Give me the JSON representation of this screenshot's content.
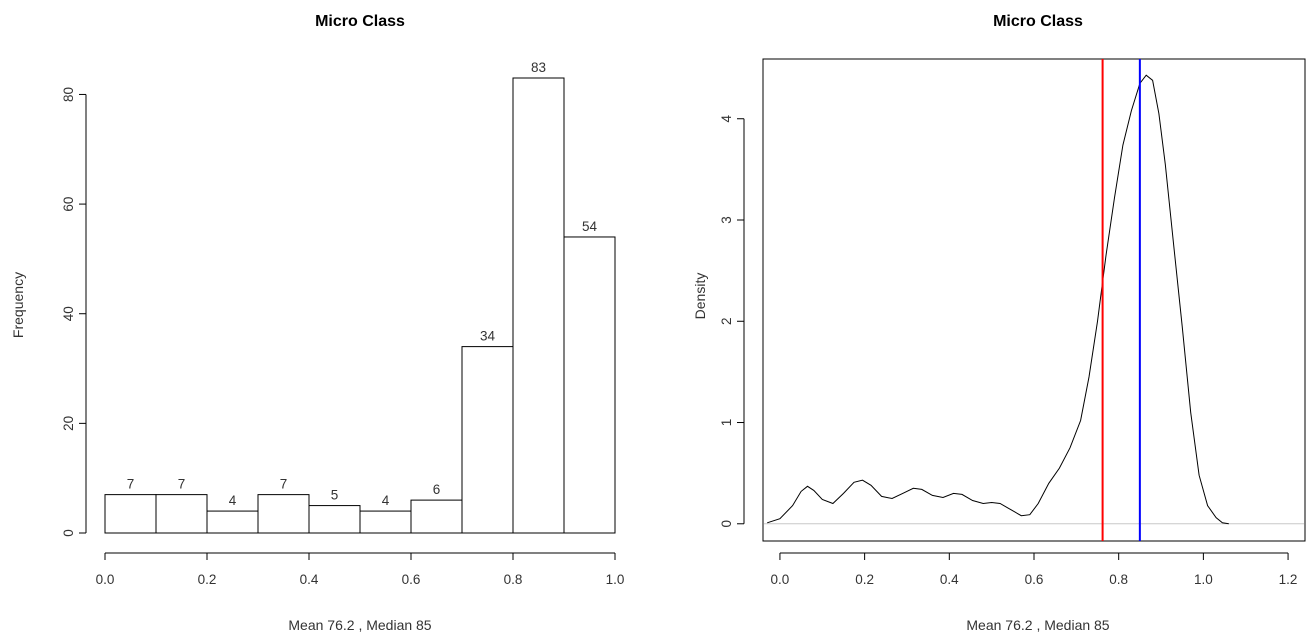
{
  "chart_data": [
    {
      "type": "bar",
      "title": "Micro Class",
      "xlabel": "Mean 76.2 , Median 85",
      "ylabel": "Frequency",
      "bin_edges": [
        0.0,
        0.1,
        0.2,
        0.3,
        0.4,
        0.5,
        0.6,
        0.7,
        0.8,
        0.9,
        1.0
      ],
      "values": [
        7,
        7,
        4,
        7,
        5,
        4,
        6,
        34,
        83,
        54
      ],
      "bar_labels": [
        "7",
        "7",
        "4",
        "7",
        "5",
        "4",
        "6",
        "34",
        "83",
        "54"
      ],
      "xlim": [
        0.0,
        1.0
      ],
      "ylim": [
        0,
        83
      ],
      "x_ticks": [
        0.0,
        0.2,
        0.4,
        0.6,
        0.8,
        1.0
      ],
      "x_tick_labels": [
        "0.0",
        "0.2",
        "0.4",
        "0.6",
        "0.8",
        "1.0"
      ],
      "y_ticks": [
        0,
        20,
        40,
        60,
        80
      ],
      "y_tick_labels": [
        "0",
        "20",
        "40",
        "60",
        "80"
      ],
      "grid": false
    },
    {
      "type": "line",
      "title": "Micro Class",
      "xlabel": "Mean 76.2 , Median 85",
      "ylabel": "Density",
      "xlim": [
        -0.04,
        1.24
      ],
      "ylim": [
        -0.17,
        4.59
      ],
      "x_ticks": [
        0.0,
        0.2,
        0.4,
        0.6,
        0.8,
        1.0,
        1.2
      ],
      "x_tick_labels": [
        "0.0",
        "0.2",
        "0.4",
        "0.6",
        "0.8",
        "1.0",
        "1.2"
      ],
      "y_ticks": [
        0,
        1,
        2,
        3,
        4
      ],
      "y_tick_labels": [
        "0",
        "1",
        "2",
        "3",
        "4"
      ],
      "x": [
        -0.03,
        0.0,
        0.03,
        0.05,
        0.065,
        0.08,
        0.1,
        0.125,
        0.15,
        0.175,
        0.195,
        0.215,
        0.24,
        0.265,
        0.29,
        0.315,
        0.335,
        0.36,
        0.385,
        0.41,
        0.43,
        0.455,
        0.48,
        0.5,
        0.52,
        0.545,
        0.57,
        0.59,
        0.61,
        0.635,
        0.66,
        0.685,
        0.71,
        0.73,
        0.75,
        0.77,
        0.79,
        0.81,
        0.83,
        0.85,
        0.865,
        0.88,
        0.895,
        0.91,
        0.93,
        0.95,
        0.97,
        0.99,
        1.01,
        1.03,
        1.045,
        1.06
      ],
      "y": [
        0.01,
        0.05,
        0.18,
        0.32,
        0.37,
        0.33,
        0.24,
        0.2,
        0.3,
        0.41,
        0.43,
        0.38,
        0.27,
        0.25,
        0.3,
        0.35,
        0.34,
        0.28,
        0.26,
        0.3,
        0.29,
        0.23,
        0.2,
        0.21,
        0.2,
        0.14,
        0.08,
        0.09,
        0.2,
        0.4,
        0.55,
        0.75,
        1.02,
        1.45,
        2.0,
        2.65,
        3.22,
        3.74,
        4.08,
        4.35,
        4.43,
        4.38,
        4.05,
        3.55,
        2.75,
        1.95,
        1.1,
        0.48,
        0.18,
        0.06,
        0.01,
        0.0
      ],
      "reference_lines": [
        {
          "x": 0.762,
          "color": "#ff0000"
        },
        {
          "x": 0.85,
          "color": "#0000ff"
        }
      ],
      "baseline_color": "#c8c8c8",
      "grid": false
    }
  ]
}
